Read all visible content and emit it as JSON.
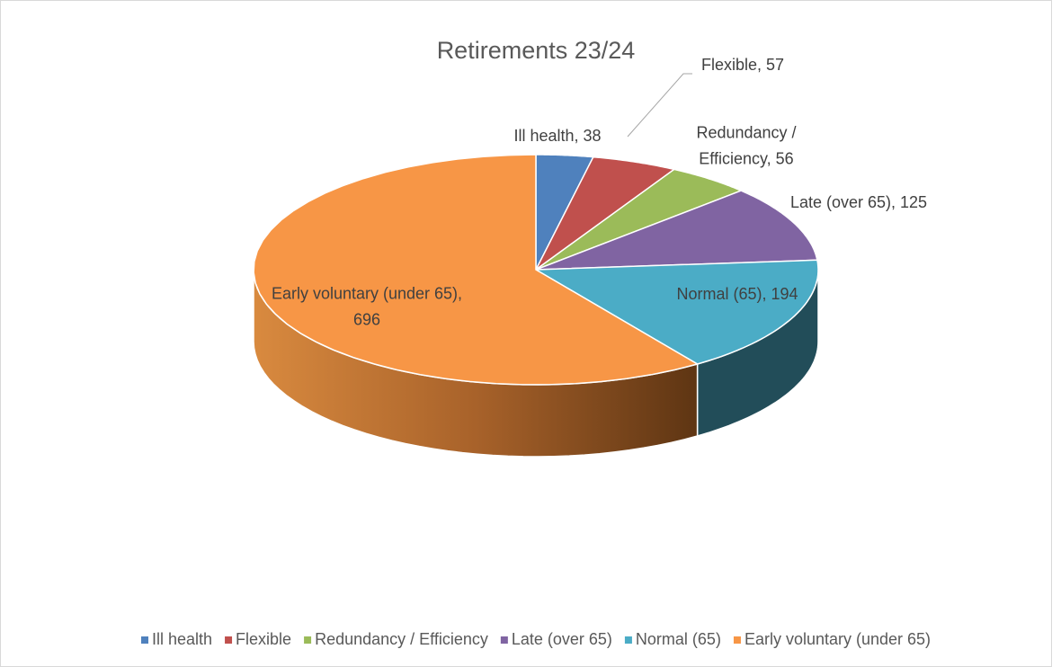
{
  "chart_data": {
    "type": "pie3d",
    "title": "Retirements 23/24",
    "categories": [
      "Ill health",
      "Flexible",
      "Redundancy / Efficiency",
      "Late (over 65)",
      "Normal (65)",
      "Early voluntary (under 65)"
    ],
    "values": [
      38,
      57,
      56,
      125,
      194,
      696
    ],
    "value_labels": [
      "Ill health, 38",
      "Flexible, 57",
      "Redundancy / Efficiency, 56",
      "Late (over 65), 125",
      "Normal (65), 194",
      "Early voluntary (under 65), 696"
    ],
    "colors": [
      "#4f81bd",
      "#c0504d",
      "#9bbb59",
      "#8064a2",
      "#4bacc6",
      "#f79646"
    ],
    "legend": "bottom"
  }
}
